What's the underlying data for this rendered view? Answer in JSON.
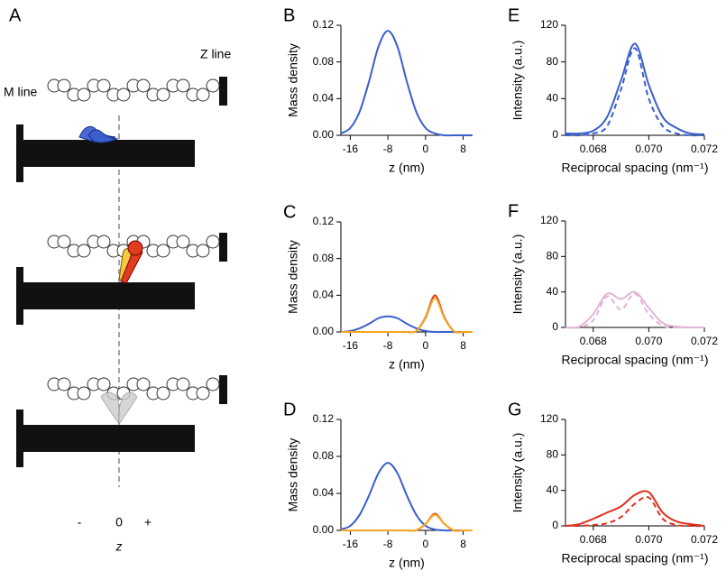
{
  "panel_a": {
    "letter": "A",
    "z_line": "Z line",
    "m_line": "M line",
    "minus": "-",
    "zero": "0",
    "plus": "+",
    "axis": "z"
  },
  "chart_data": [
    {
      "type": "line",
      "panel": "B",
      "y_label": "Mass density",
      "x_label": "z (nm)",
      "x": [
        -18,
        -16,
        -14,
        -12,
        -10,
        -8,
        -6,
        -4,
        -2,
        0,
        2,
        4,
        6,
        8,
        10
      ],
      "series": [
        {
          "color": "#3a5fcd",
          "values": [
            0.002,
            0.008,
            0.026,
            0.059,
            0.097,
            0.114,
            0.097,
            0.059,
            0.026,
            0.008,
            0.002,
            0,
            0,
            0,
            0
          ]
        }
      ],
      "xlim": [
        -18,
        10
      ],
      "xticks": [
        -16,
        -8,
        0,
        8
      ],
      "ylim": [
        0,
        0.12
      ],
      "yticks": [
        {
          "value": 0,
          "label": "0.00"
        },
        0.04,
        0.08,
        0.12
      ]
    },
    {
      "type": "line",
      "panel": "C",
      "y_label": "Mass density",
      "x_label": "z (nm)",
      "x": [
        -18,
        -16,
        -14,
        -12,
        -10,
        -8,
        -6,
        -4,
        -2,
        0,
        2,
        4,
        6,
        8,
        10
      ],
      "series": [
        {
          "color": "#3a5fcd",
          "values": [
            0,
            0.001,
            0.004,
            0.009,
            0.015,
            0.017,
            0.015,
            0.009,
            0.004,
            0.001,
            0,
            0,
            0,
            0,
            0
          ]
        },
        {
          "color": "#e03c1e",
          "values": [
            0,
            0,
            0,
            0,
            0,
            0,
            0,
            0,
            0.001,
            0.016,
            0.04,
            0.016,
            0.001,
            0,
            0
          ]
        },
        {
          "color": "#f5a623",
          "values": [
            0,
            0,
            0,
            0,
            0,
            0,
            0,
            0,
            0.001,
            0.015,
            0.037,
            0.015,
            0.001,
            0,
            0
          ]
        }
      ],
      "xlim": [
        -18,
        10
      ],
      "xticks": [
        -16,
        -8,
        0,
        8
      ],
      "ylim": [
        0,
        0.12
      ],
      "yticks": [
        {
          "value": 0,
          "label": "0.00"
        },
        0.04,
        0.08,
        0.12
      ]
    },
    {
      "type": "line",
      "panel": "D",
      "y_label": "Mass density",
      "x_label": "z (nm)",
      "x": [
        -18,
        -16,
        -14,
        -12,
        -10,
        -8,
        -6,
        -4,
        -2,
        0,
        2,
        4,
        6,
        8,
        10
      ],
      "series": [
        {
          "color": "#3a5fcd",
          "values": [
            0.001,
            0.005,
            0.017,
            0.038,
            0.062,
            0.073,
            0.062,
            0.038,
            0.017,
            0.005,
            0.001,
            0,
            0,
            0,
            0
          ]
        },
        {
          "color": "#e03c1e",
          "values": [
            0,
            0,
            0,
            0,
            0,
            0,
            0,
            0,
            0,
            0.007,
            0.018,
            0.007,
            0,
            0,
            0
          ]
        },
        {
          "color": "#f5a623",
          "values": [
            0,
            0,
            0,
            0,
            0,
            0,
            0,
            0,
            0,
            0.007,
            0.017,
            0.007,
            0,
            0,
            0
          ]
        }
      ],
      "xlim": [
        -18,
        10
      ],
      "xticks": [
        -16,
        -8,
        0,
        8
      ],
      "ylim": [
        0,
        0.12
      ],
      "yticks": [
        {
          "value": 0,
          "label": "0.00"
        },
        0.04,
        0.08,
        0.12
      ]
    },
    {
      "type": "line",
      "panel": "E",
      "y_label": "Intensity (a.u.)",
      "x_label": "Reciprocal spacing (nm⁻¹)",
      "x": [
        0.067,
        0.0675,
        0.068,
        0.0685,
        0.069,
        0.0695,
        0.07,
        0.0705,
        0.071,
        0.0715,
        0.072
      ],
      "series": [
        {
          "color": "#3a5fcd",
          "dash": false,
          "values": [
            2,
            2,
            5,
            20,
            60,
            100,
            55,
            20,
            8,
            2,
            1
          ]
        },
        {
          "color": "#3a5fcd",
          "dash": true,
          "values": [
            0,
            0,
            2,
            10,
            50,
            95,
            40,
            10,
            2,
            0,
            0
          ]
        }
      ],
      "xlim": [
        0.067,
        0.072
      ],
      "xticks": [
        0.068,
        {
          "value": 0.07,
          "label": "0.070"
        },
        0.072
      ],
      "ylim": [
        0,
        120
      ],
      "yticks": [
        0,
        40,
        80,
        120
      ]
    },
    {
      "type": "line",
      "panel": "F",
      "y_label": "Intensity (a.u.)",
      "x_label": "Reciprocal spacing (nm⁻¹)",
      "x": [
        0.067,
        0.0675,
        0.068,
        0.0685,
        0.069,
        0.0695,
        0.07,
        0.0705,
        0.071,
        0.0715,
        0.072
      ],
      "series": [
        {
          "color": "#e2b4d6",
          "dash": false,
          "values": [
            0,
            1,
            15,
            38,
            32,
            40,
            22,
            5,
            1,
            0,
            0
          ]
        },
        {
          "color": "#e2b4d6",
          "dash": true,
          "values": [
            0,
            0,
            8,
            35,
            20,
            38,
            15,
            2,
            0,
            0,
            0
          ]
        }
      ],
      "xlim": [
        0.067,
        0.072
      ],
      "xticks": [
        0.068,
        {
          "value": 0.07,
          "label": "0.070"
        },
        0.072
      ],
      "ylim": [
        0,
        120
      ],
      "yticks": [
        0,
        40,
        80,
        120
      ]
    },
    {
      "type": "line",
      "panel": "G",
      "y_label": "Intensity (a.u.)",
      "x_label": "Reciprocal spacing (nm⁻¹)",
      "x": [
        0.067,
        0.0675,
        0.068,
        0.0685,
        0.069,
        0.0695,
        0.07,
        0.0705,
        0.071,
        0.0715,
        0.072
      ],
      "series": [
        {
          "color": "#e0301e",
          "dash": false,
          "values": [
            0,
            2,
            8,
            15,
            22,
            35,
            38,
            15,
            5,
            2,
            0
          ]
        },
        {
          "color": "#e0301e",
          "dash": true,
          "values": [
            0,
            0,
            1,
            3,
            10,
            25,
            32,
            8,
            1,
            0,
            0
          ]
        }
      ],
      "xlim": [
        0.067,
        0.072
      ],
      "xticks": [
        0.068,
        {
          "value": 0.07,
          "label": "0.070"
        },
        0.072
      ],
      "ylim": [
        0,
        120
      ],
      "yticks": [
        0,
        40,
        80,
        120
      ]
    }
  ]
}
